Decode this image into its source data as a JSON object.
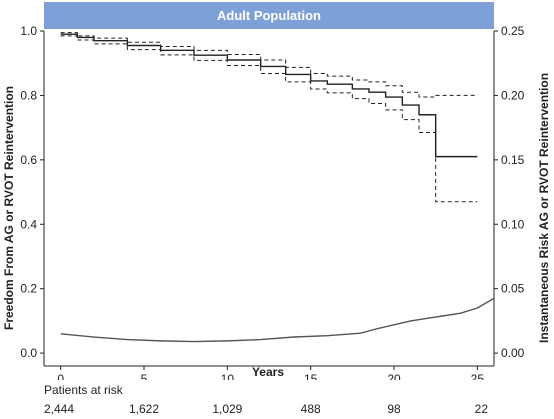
{
  "chart_data": {
    "type": "line",
    "title": "Adult Population",
    "xlabel": "Years",
    "ylabel_left": "Freedom From AG or RVOT Reintervention",
    "ylabel_right": "Instantaneous Risk AG or RVOT Reintervention",
    "xlim": [
      -1,
      26
    ],
    "ylim_left": [
      -0.04,
      1.0
    ],
    "ylim_right": [
      -0.01,
      0.25
    ],
    "x_ticks": [
      0,
      5,
      10,
      15,
      20,
      25
    ],
    "y_left_ticks": [
      "0.0",
      "0.2",
      "0.4",
      "0.6",
      "0.8",
      "1.0"
    ],
    "y_right_ticks": [
      "0.00",
      "0.05",
      "0.10",
      "0.15",
      "0.20",
      "0.25"
    ],
    "series": [
      {
        "axis": "left",
        "style": "solid",
        "x": [
          0,
          1,
          2,
          4,
          6,
          8,
          10,
          12,
          13.5,
          15,
          16,
          17.5,
          18.5,
          19.5,
          20.5,
          21.5,
          22.5,
          25
        ],
        "y": [
          0.99,
          0.98,
          0.97,
          0.955,
          0.94,
          0.925,
          0.91,
          0.89,
          0.865,
          0.845,
          0.835,
          0.82,
          0.81,
          0.795,
          0.77,
          0.74,
          0.61,
          0.61
        ]
      },
      {
        "axis": "left",
        "style": "dashed",
        "x": [
          0,
          1,
          2,
          4,
          6,
          8,
          10,
          12,
          13.5,
          15,
          16,
          17.5,
          18.5,
          19.5,
          20.5,
          21.5,
          22.5,
          25
        ],
        "y": [
          0.995,
          0.985,
          0.978,
          0.965,
          0.952,
          0.94,
          0.927,
          0.91,
          0.887,
          0.868,
          0.86,
          0.848,
          0.842,
          0.83,
          0.81,
          0.795,
          0.8,
          0.8
        ]
      },
      {
        "axis": "left",
        "style": "dashed",
        "x": [
          0,
          1,
          2,
          4,
          6,
          8,
          10,
          12,
          13.5,
          15,
          16,
          17.5,
          18.5,
          19.5,
          20.5,
          21.5,
          22.5,
          25
        ],
        "y": [
          0.985,
          0.972,
          0.96,
          0.942,
          0.926,
          0.909,
          0.893,
          0.868,
          0.842,
          0.82,
          0.808,
          0.79,
          0.775,
          0.755,
          0.725,
          0.685,
          0.47,
          0.47
        ]
      },
      {
        "axis": "right",
        "style": "solid",
        "x": [
          0,
          2,
          4,
          6,
          8,
          10,
          12,
          14,
          16,
          18,
          19,
          20,
          21,
          22,
          23,
          24,
          25,
          26
        ],
        "y": [
          0.015,
          0.0125,
          0.0105,
          0.0095,
          0.009,
          0.0095,
          0.0105,
          0.0125,
          0.0135,
          0.0155,
          0.019,
          0.022,
          0.025,
          0.027,
          0.029,
          0.031,
          0.035,
          0.0425
        ]
      }
    ]
  },
  "risk_table": {
    "title": "Patients at risk",
    "values": [
      "2,444",
      "1,622",
      "1,029",
      "488",
      "98",
      "22"
    ]
  }
}
